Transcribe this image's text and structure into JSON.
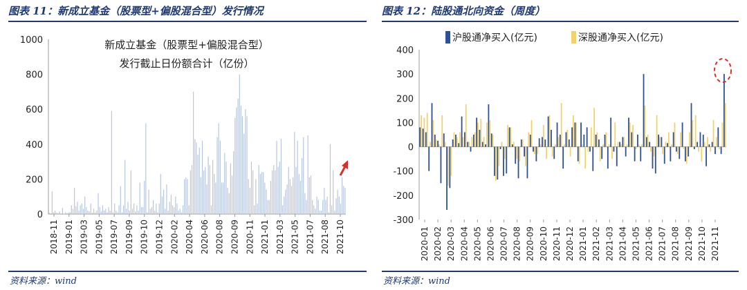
{
  "left_panel": {
    "title": "图表 11：新成立基金（股票型+偏股混合型）发行情况",
    "source": "资料来源：wind"
  },
  "right_panel": {
    "title": "图表 12：陆股通北向资金（周度）",
    "source": "资料来源：wind"
  },
  "colors": {
    "bar_light": "#b7c6df",
    "hu": "#2f4f99",
    "shen": "#f2d36b",
    "rule": "#1f3a74",
    "arrow": "#d9302a"
  },
  "chart_data": [
    {
      "type": "bar",
      "title": "新成立基金（股票型+偏股混合型）",
      "subtitle": "发行截止日份额合计（亿份）",
      "ylim": [
        0,
        1000
      ],
      "yticks": [
        0,
        200,
        400,
        600,
        800,
        1000
      ],
      "tick_labels": [
        "2018-11",
        "2019-01",
        "2019-03",
        "2019-05",
        "2019-07",
        "2019-09",
        "2019-10",
        "2019-12",
        "2020-02",
        "2020-04",
        "2020-06",
        "2020-08",
        "2020-09",
        "2020-11",
        "2021-01",
        "2021-03",
        "2021-05",
        "2021-07",
        "2021-08",
        "2021-10"
      ],
      "values": [
        8,
        5,
        130,
        10,
        20,
        8,
        5,
        15,
        3,
        35,
        2,
        10,
        5,
        8,
        12,
        50,
        30,
        150,
        45,
        70,
        20,
        50,
        60,
        30,
        100,
        40,
        20,
        15,
        60,
        8,
        30,
        10,
        20,
        120,
        40,
        15,
        50,
        20,
        30,
        10,
        40,
        20,
        590,
        10,
        60,
        20,
        10,
        50,
        160,
        10,
        50,
        310,
        30,
        70,
        20,
        250,
        30,
        60,
        15,
        50,
        20,
        180,
        40,
        40,
        190,
        520,
        10,
        140,
        30,
        40,
        80,
        20,
        60,
        10,
        60,
        230,
        100,
        140,
        30,
        170,
        20,
        70,
        110,
        50,
        40,
        100,
        60,
        20,
        30,
        10,
        50,
        200,
        210,
        200,
        50,
        250,
        280,
        700,
        430,
        410,
        340,
        380,
        210,
        420,
        250,
        270,
        170,
        330,
        280,
        50,
        310,
        230,
        180,
        440,
        520,
        420,
        180,
        180,
        350,
        300,
        150,
        120,
        290,
        220,
        360,
        550,
        610,
        660,
        800,
        620,
        560,
        460,
        600,
        560,
        200,
        150,
        300,
        250,
        50,
        200,
        60,
        280,
        230,
        240,
        240,
        180,
        140,
        80,
        80,
        190,
        250,
        280,
        250,
        420,
        270,
        300,
        430,
        50,
        100,
        140,
        170,
        270,
        200,
        160,
        210,
        470,
        270,
        420,
        230,
        190,
        320,
        440,
        120,
        80,
        450,
        210,
        220,
        80,
        50,
        30,
        100,
        80,
        20,
        20,
        80,
        150,
        80,
        100,
        10,
        400,
        50,
        250,
        20,
        90,
        140,
        100,
        60,
        210,
        160,
        150
      ],
      "annotation": "arrow pointing up at latest values"
    },
    {
      "type": "bar",
      "ylim": [
        -300,
        400
      ],
      "yticks": [
        -300,
        -200,
        -100,
        0,
        100,
        200,
        300,
        400
      ],
      "tick_labels": [
        "2020-01",
        "2020-02",
        "2020-03",
        "2020-04",
        "2020-05",
        "2020-06",
        "2020-07",
        "2020-08",
        "2020-09",
        "2020-10",
        "2020-11",
        "2020-12",
        "2021-01",
        "2021-02",
        "2021-03",
        "2021-04",
        "2021-05",
        "2021-06",
        "2021-07",
        "2021-08",
        "2021-09",
        "2021-10",
        "2021-11"
      ],
      "series": [
        {
          "name": "沪股通净买入(亿元)",
          "values": [
            80,
            75,
            60,
            -100,
            180,
            50,
            25,
            -150,
            55,
            -260,
            -170,
            30,
            50,
            15,
            125,
            60,
            20,
            -20,
            50,
            120,
            70,
            20,
            10,
            175,
            55,
            -120,
            -135,
            -10,
            -120,
            -110,
            80,
            10,
            -70,
            -130,
            30,
            -40,
            -130,
            50,
            -20,
            -60,
            35,
            40,
            30,
            125,
            70,
            -50,
            100,
            50,
            -90,
            60,
            30,
            80,
            100,
            -60,
            100,
            50,
            80,
            -20,
            -100,
            50,
            30,
            -50,
            50,
            -90,
            120,
            -20,
            -80,
            20,
            40,
            -40,
            120,
            60,
            -60,
            50,
            -60,
            300,
            40,
            20,
            -90,
            -110,
            50,
            40,
            -70,
            15,
            -60,
            60,
            -20,
            -50,
            100,
            -60,
            -40,
            180,
            -10,
            20,
            60,
            50,
            -80,
            10,
            20,
            -30,
            80,
            -30,
            300
          ]
        },
        {
          "name": "深股通净买入(亿元)",
          "values": [
            130,
            120,
            140,
            20,
            110,
            30,
            10,
            130,
            20,
            -160,
            -120,
            60,
            40,
            60,
            40,
            175,
            20,
            40,
            60,
            100,
            115,
            40,
            100,
            110,
            50,
            -140,
            -80,
            20,
            -50,
            90,
            80,
            20,
            -50,
            -60,
            30,
            -80,
            60,
            110,
            -30,
            -30,
            10,
            90,
            -50,
            130,
            -40,
            10,
            40,
            180,
            10,
            70,
            -40,
            130,
            100,
            -70,
            10,
            -90,
            -20,
            80,
            160,
            60,
            -60,
            10,
            60,
            10,
            -50,
            100,
            20,
            10,
            40,
            10,
            100,
            90,
            -10,
            10,
            10,
            170,
            50,
            -20,
            -40,
            130,
            40,
            -30,
            20,
            60,
            10,
            100,
            -30,
            60,
            -10,
            -70,
            60,
            110,
            130,
            -20,
            -60,
            20,
            40,
            -20,
            110,
            40,
            -10,
            100,
            180
          ]
        }
      ],
      "legend": "top",
      "annotation": "dashed red circle around latest values"
    }
  ]
}
